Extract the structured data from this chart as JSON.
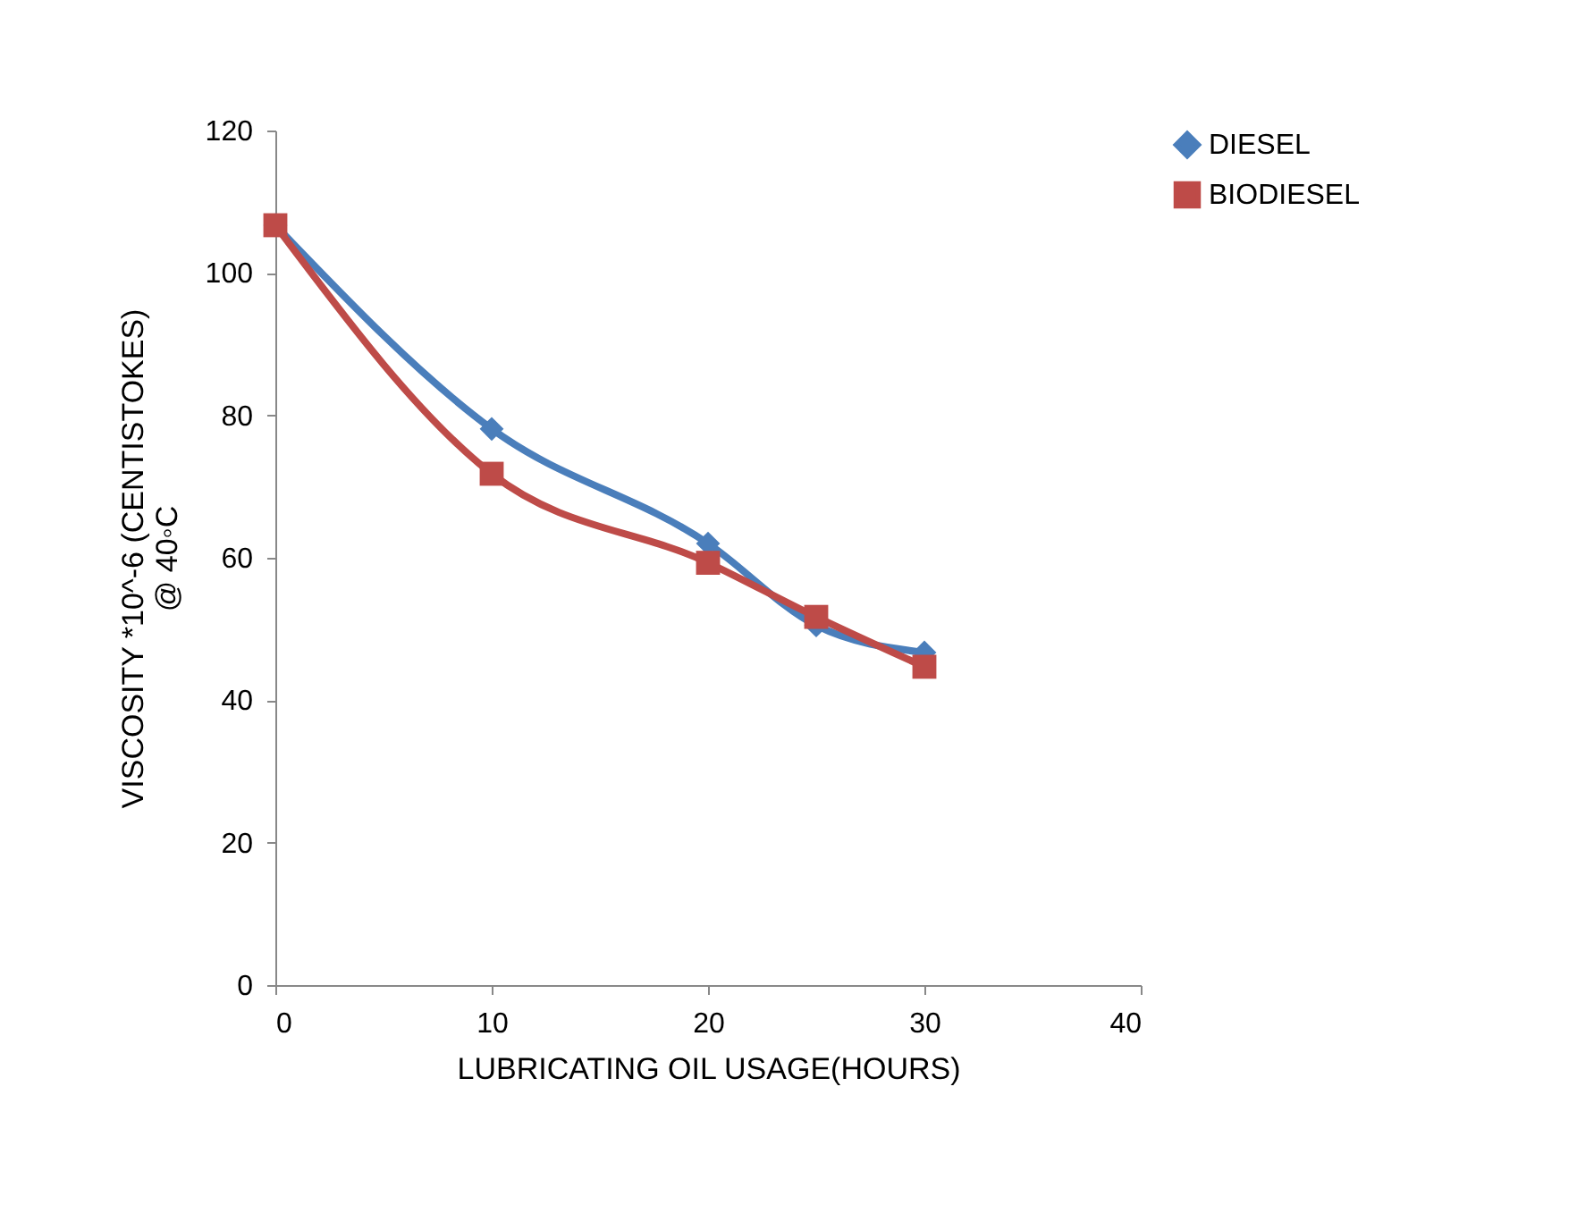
{
  "chart_data": {
    "type": "line",
    "xlabel": "LUBRICATING OIL USAGE(HOURS)",
    "ylabel": "VISCOSITY *10^-6 (CENTISTOKES)\n@ 40◦C",
    "x": [
      0,
      10,
      20,
      25,
      30
    ],
    "series": [
      {
        "name": "DIESEL",
        "color": "#4a7ebb",
        "marker": "diamond",
        "values": [
          106.7,
          78.1,
          62,
          50.5,
          46.7
        ]
      },
      {
        "name": "BIODIESEL",
        "color": "#be4b48",
        "marker": "square",
        "values": [
          106.7,
          71.8,
          59.3,
          51.7,
          44.7
        ]
      }
    ],
    "xlim": [
      0,
      40
    ],
    "xticks": [
      0,
      10,
      20,
      30,
      40
    ],
    "ylim": [
      0,
      120
    ],
    "yticks": [
      0,
      20,
      40,
      60,
      80,
      100,
      120
    ],
    "grid": false,
    "legend": "right",
    "line_style": "solid"
  }
}
